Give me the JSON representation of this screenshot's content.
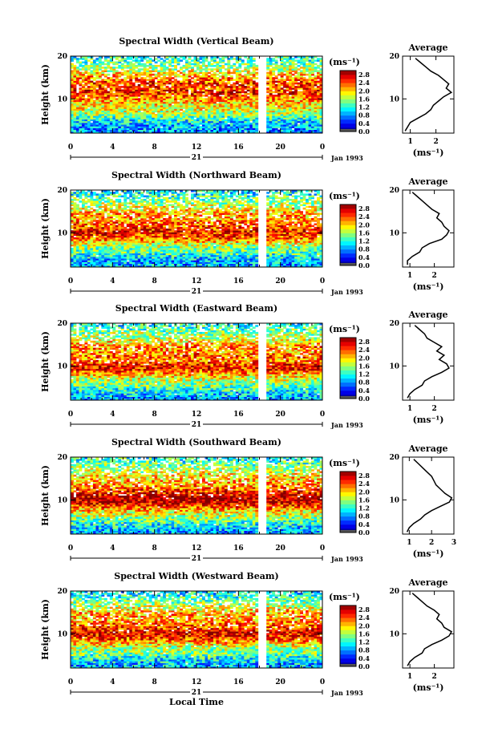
{
  "chart_data": {
    "type": "heatmap",
    "common": {
      "xlabel": "Local Time",
      "ylabel": "Height (km)",
      "x_ticks": [
        "0",
        "4",
        "8",
        "12",
        "16",
        "20",
        "0"
      ],
      "x_range": [
        0,
        24
      ],
      "y_ticks": [
        "10",
        "20"
      ],
      "y_range": [
        2,
        20
      ],
      "date_day": "21",
      "date_label": "Jan 1993",
      "colorbar_unit": "(ms⁻¹)",
      "colorbar_ticks": [
        "2.8",
        "2.4",
        "2.0",
        "1.6",
        "1.2",
        "0.8",
        "0.4",
        "0.0"
      ],
      "colorbar_range": [
        0.0,
        3.0
      ],
      "average_title": "Average",
      "average_xlabel": "(ms⁻¹)",
      "average_y_ticks": [
        "10",
        "20"
      ],
      "data_gap_local_time": [
        18.0,
        18.6
      ]
    },
    "panels": [
      {
        "title": "Spectral Width (Vertical Beam)",
        "average_x_ticks": [
          "1",
          "2"
        ],
        "average_x_range": [
          0.7,
          2.7
        ],
        "average_profile": [
          {
            "h": 2.5,
            "w": 0.8
          },
          {
            "h": 3.5,
            "w": 0.9
          },
          {
            "h": 4.5,
            "w": 1.0
          },
          {
            "h": 5.5,
            "w": 1.3
          },
          {
            "h": 6.5,
            "w": 1.6
          },
          {
            "h": 7.5,
            "w": 1.8
          },
          {
            "h": 8.5,
            "w": 1.9
          },
          {
            "h": 9.5,
            "w": 2.1
          },
          {
            "h": 10.5,
            "w": 2.3
          },
          {
            "h": 11.5,
            "w": 2.6
          },
          {
            "h": 12.5,
            "w": 2.4
          },
          {
            "h": 13.5,
            "w": 2.5
          },
          {
            "h": 14.5,
            "w": 2.3
          },
          {
            "h": 15.5,
            "w": 2.1
          },
          {
            "h": 16.5,
            "w": 1.8
          },
          {
            "h": 17.5,
            "w": 1.6
          },
          {
            "h": 18.5,
            "w": 1.4
          },
          {
            "h": 19.5,
            "w": 1.2
          }
        ]
      },
      {
        "title": "Spectral Width (Northward Beam)",
        "average_x_ticks": [
          "1",
          "2"
        ],
        "average_x_range": [
          0.7,
          2.8
        ],
        "average_profile": [
          {
            "h": 2.5,
            "w": 0.9
          },
          {
            "h": 3.5,
            "w": 0.9
          },
          {
            "h": 4.5,
            "w": 1.1
          },
          {
            "h": 5.5,
            "w": 1.4
          },
          {
            "h": 6.5,
            "w": 1.5
          },
          {
            "h": 7.5,
            "w": 1.8
          },
          {
            "h": 8.5,
            "w": 2.3
          },
          {
            "h": 9.5,
            "w": 2.5
          },
          {
            "h": 10.5,
            "w": 2.6
          },
          {
            "h": 11.5,
            "w": 2.4
          },
          {
            "h": 12.5,
            "w": 2.3
          },
          {
            "h": 13.5,
            "w": 2.1
          },
          {
            "h": 14.5,
            "w": 2.2
          },
          {
            "h": 15.5,
            "w": 1.9
          },
          {
            "h": 16.5,
            "w": 1.7
          },
          {
            "h": 17.5,
            "w": 1.5
          },
          {
            "h": 18.5,
            "w": 1.3
          },
          {
            "h": 19.5,
            "w": 1.1
          }
        ]
      },
      {
        "title": "Spectral Width (Eastward Beam)",
        "average_x_ticks": [
          "1",
          "2"
        ],
        "average_x_range": [
          0.7,
          2.8
        ],
        "average_profile": [
          {
            "h": 2.5,
            "w": 0.9
          },
          {
            "h": 3.5,
            "w": 1.0
          },
          {
            "h": 4.5,
            "w": 1.2
          },
          {
            "h": 5.5,
            "w": 1.5
          },
          {
            "h": 6.5,
            "w": 1.6
          },
          {
            "h": 7.5,
            "w": 1.9
          },
          {
            "h": 8.5,
            "w": 2.3
          },
          {
            "h": 9.5,
            "w": 2.6
          },
          {
            "h": 10.5,
            "w": 2.5
          },
          {
            "h": 11.5,
            "w": 2.2
          },
          {
            "h": 12.5,
            "w": 2.4
          },
          {
            "h": 13.5,
            "w": 2.1
          },
          {
            "h": 14.5,
            "w": 2.3
          },
          {
            "h": 15.5,
            "w": 2.0
          },
          {
            "h": 16.5,
            "w": 1.7
          },
          {
            "h": 17.5,
            "w": 1.6
          },
          {
            "h": 18.5,
            "w": 1.4
          },
          {
            "h": 19.5,
            "w": 1.2
          }
        ]
      },
      {
        "title": "Spectral Width (Southward Beam)",
        "average_x_ticks": [
          "1",
          "2",
          "3"
        ],
        "average_x_range": [
          0.7,
          3.0
        ],
        "average_profile": [
          {
            "h": 2.5,
            "w": 0.9
          },
          {
            "h": 3.5,
            "w": 1.0
          },
          {
            "h": 4.5,
            "w": 1.2
          },
          {
            "h": 5.5,
            "w": 1.5
          },
          {
            "h": 6.5,
            "w": 1.7
          },
          {
            "h": 7.5,
            "w": 2.0
          },
          {
            "h": 8.5,
            "w": 2.4
          },
          {
            "h": 9.5,
            "w": 2.8
          },
          {
            "h": 10.5,
            "w": 2.9
          },
          {
            "h": 11.5,
            "w": 2.6
          },
          {
            "h": 12.5,
            "w": 2.4
          },
          {
            "h": 13.5,
            "w": 2.2
          },
          {
            "h": 14.5,
            "w": 2.1
          },
          {
            "h": 15.5,
            "w": 2.0
          },
          {
            "h": 16.5,
            "w": 1.8
          },
          {
            "h": 17.5,
            "w": 1.6
          },
          {
            "h": 18.5,
            "w": 1.4
          },
          {
            "h": 19.5,
            "w": 1.2
          }
        ]
      },
      {
        "title": "Spectral Width (Westward Beam)",
        "average_x_ticks": [
          "1",
          "2"
        ],
        "average_x_range": [
          0.7,
          2.8
        ],
        "average_profile": [
          {
            "h": 2.5,
            "w": 0.9
          },
          {
            "h": 3.5,
            "w": 1.0
          },
          {
            "h": 4.5,
            "w": 1.2
          },
          {
            "h": 5.5,
            "w": 1.5
          },
          {
            "h": 6.5,
            "w": 1.6
          },
          {
            "h": 7.5,
            "w": 1.9
          },
          {
            "h": 8.5,
            "w": 2.3
          },
          {
            "h": 9.5,
            "w": 2.6
          },
          {
            "h": 10.5,
            "w": 2.7
          },
          {
            "h": 11.5,
            "w": 2.4
          },
          {
            "h": 12.5,
            "w": 2.3
          },
          {
            "h": 13.5,
            "w": 2.1
          },
          {
            "h": 14.5,
            "w": 2.2
          },
          {
            "h": 15.5,
            "w": 2.0
          },
          {
            "h": 16.5,
            "w": 1.7
          },
          {
            "h": 17.5,
            "w": 1.5
          },
          {
            "h": 18.5,
            "w": 1.3
          },
          {
            "h": 19.5,
            "w": 1.1
          }
        ]
      }
    ]
  }
}
